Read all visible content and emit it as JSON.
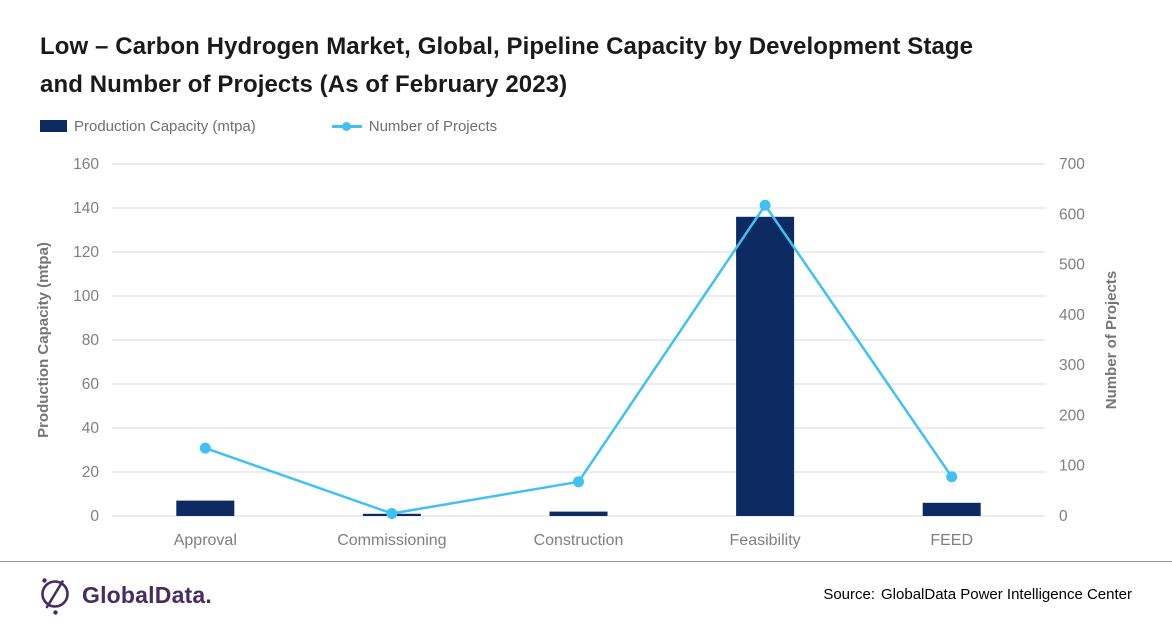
{
  "title": {
    "line1": "Low – Carbon Hydrogen Market, Global, Pipeline Capacity by Development Stage",
    "line2": "and Number of Projects (As of February 2023)"
  },
  "legend": [
    {
      "label": "Production Capacity (mtpa)",
      "marker": "bar-swatch",
      "color": "#0d2a63"
    },
    {
      "label": "Number of Projects",
      "marker": "line-dot",
      "color": "#41c0f1"
    }
  ],
  "chart_data": {
    "type": "bar+line",
    "categories": [
      "Approval",
      "Commissioning",
      "Construction",
      "Feasibility",
      "FEED"
    ],
    "series": [
      {
        "name": "Production Capacity (mtpa)",
        "type": "bar",
        "axis": "left",
        "color": "#0d2a63",
        "values": [
          7,
          1,
          2,
          136,
          6
        ]
      },
      {
        "name": "Number of Projects",
        "type": "line",
        "axis": "right",
        "color": "#41c0f1",
        "values": [
          135,
          5,
          68,
          618,
          78
        ]
      }
    ],
    "left_axis": {
      "label": "Production Capacity (mtpa)",
      "min": 0,
      "max": 160,
      "tick_step": 20,
      "ticks": [
        0,
        20,
        40,
        60,
        80,
        100,
        120,
        140,
        160
      ]
    },
    "right_axis": {
      "label": "Number of Projects",
      "min": 0,
      "max": 700,
      "tick_step": 100,
      "ticks": [
        0,
        100,
        200,
        300,
        400,
        500,
        600,
        700
      ]
    },
    "grid": true,
    "legend_position": "top-left"
  },
  "colors": {
    "bar": "#0d2a63",
    "line": "#41c0f1",
    "gridline": "#d9d9d9",
    "tick_text": "#7f7f7f",
    "axis_title_text": "#767676",
    "title_text": "#1a1a1a",
    "logo_purple": "#452c63"
  },
  "footer": {
    "logo_text": "GlobalData.",
    "source_prefix": "Source:",
    "source_text": "GlobalData Power Intelligence Center"
  }
}
